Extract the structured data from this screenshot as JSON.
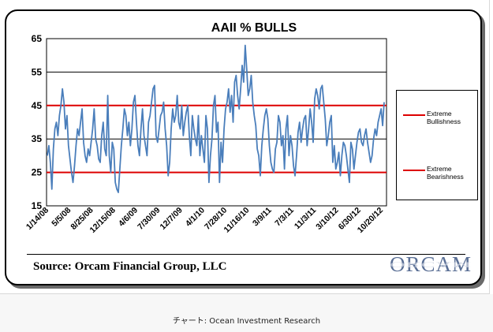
{
  "caption": "チャート: Ocean Investment Research",
  "source_text": "Source: Orcam Financial Group, LLC",
  "logo_text": "ORCAM",
  "chart_data": {
    "type": "line",
    "title": "AAII % BULLS",
    "xlabel": "",
    "ylabel": "",
    "ylim": [
      15,
      65
    ],
    "yticks": [
      15,
      25,
      35,
      45,
      55,
      65
    ],
    "xtick_labels": [
      "1/14/08",
      "5/5/08",
      "8/25/08",
      "12/15/08",
      "4/6/09",
      "7/30/09",
      "12/7/09",
      "4/1/10",
      "7/28/10",
      "11/16/10",
      "3/9/11",
      "7/3/11",
      "11/3/11",
      "3/10/12",
      "6/30/12",
      "10/20/12"
    ],
    "grid": "horizontal",
    "series": [
      {
        "name": "",
        "color": "#4a7ebb",
        "values": [
          30,
          33,
          28,
          20,
          32,
          38,
          40,
          36,
          42,
          45,
          50,
          46,
          38,
          42,
          33,
          29,
          25,
          22,
          27,
          33,
          38,
          36,
          40,
          44,
          34,
          30,
          28,
          32,
          30,
          34,
          38,
          44,
          35,
          33,
          29,
          28,
          36,
          40,
          32,
          30,
          48,
          30,
          25,
          34,
          32,
          22,
          20,
          19,
          26,
          33,
          38,
          44,
          42,
          36,
          40,
          33,
          38,
          46,
          48,
          40,
          33,
          30,
          38,
          44,
          36,
          33,
          30,
          40,
          42,
          46,
          50,
          51,
          36,
          34,
          38,
          42,
          43,
          46,
          38,
          33,
          24,
          28,
          38,
          44,
          40,
          42,
          48,
          40,
          38,
          45,
          36,
          40,
          43,
          45,
          36,
          30,
          42,
          38,
          35,
          33,
          42,
          30,
          36,
          32,
          28,
          42,
          38,
          22,
          30,
          35,
          45,
          48,
          37,
          40,
          22,
          34,
          28,
          38,
          44,
          46,
          50,
          43,
          48,
          40,
          52,
          54,
          48,
          44,
          50,
          57,
          52,
          63,
          56,
          48,
          50,
          54,
          46,
          42,
          39,
          32,
          30,
          24,
          33,
          38,
          42,
          44,
          41,
          33,
          28,
          26,
          25,
          32,
          34,
          42,
          40,
          33,
          36,
          26,
          38,
          42,
          30,
          36,
          33,
          27,
          24,
          30,
          37,
          40,
          34,
          38,
          41,
          42,
          33,
          38,
          44,
          40,
          34,
          47,
          50,
          48,
          44,
          50,
          51,
          46,
          41,
          33,
          36,
          40,
          42,
          28,
          33,
          26,
          28,
          31,
          24,
          30,
          34,
          33,
          30,
          26,
          22,
          34,
          32,
          26,
          30,
          34,
          37,
          38,
          34,
          33,
          36,
          38,
          34,
          31,
          28,
          30,
          35,
          38,
          36,
          40,
          42,
          44,
          39,
          46
        ]
      },
      {
        "name": "Extreme Bullishness",
        "color": "#dd0000",
        "value": 45
      },
      {
        "name": "Extreme Bearishness",
        "color": "#dd0000",
        "value": 25
      }
    ],
    "reference_lines": [
      55,
      35
    ]
  }
}
